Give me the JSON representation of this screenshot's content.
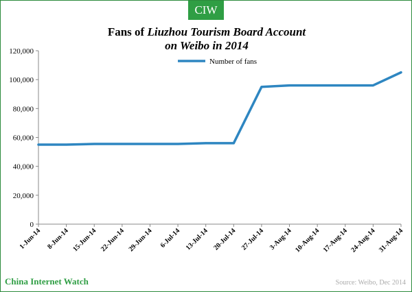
{
  "badge": {
    "text": "CIW"
  },
  "title": {
    "line1_prefix": "Fans of ",
    "line1_emph": "Liuzhou Tourism Board Account",
    "line2": "on Weibo in 2014"
  },
  "footer": {
    "brand": "China Internet Watch",
    "source": "Source: Weibo, Dec 2014"
  },
  "colors": {
    "brand_green": "#2f9e44",
    "series": "#2e86c1",
    "source_text": "#aaaaaa"
  },
  "chart_data": {
    "type": "line",
    "categories": [
      "1-Jun-14",
      "8-Jun-14",
      "15-Jun-14",
      "22-Jun-14",
      "29-Jun-14",
      "6-Jul-14",
      "13-Jul-14",
      "20-Jul-14",
      "27-Jul-14",
      "3-Aug-14",
      "10-Aug-14",
      "17-Aug-14",
      "24-Aug-14",
      "31-Aug-14"
    ],
    "series": [
      {
        "name": "Number of fans",
        "values": [
          55000,
          55000,
          55500,
          55500,
          55500,
          55500,
          56000,
          56000,
          95000,
          96000,
          96000,
          96000,
          96000,
          105000
        ]
      }
    ],
    "ylim": [
      0,
      120000
    ],
    "yticks": [
      0,
      20000,
      40000,
      60000,
      80000,
      100000,
      120000
    ],
    "ytick_labels": [
      "0",
      "20,000",
      "40,000",
      "60,000",
      "80,000",
      "100,000",
      "120,000"
    ],
    "legend": "top-center",
    "grid": false,
    "xlabel": "",
    "ylabel": ""
  }
}
